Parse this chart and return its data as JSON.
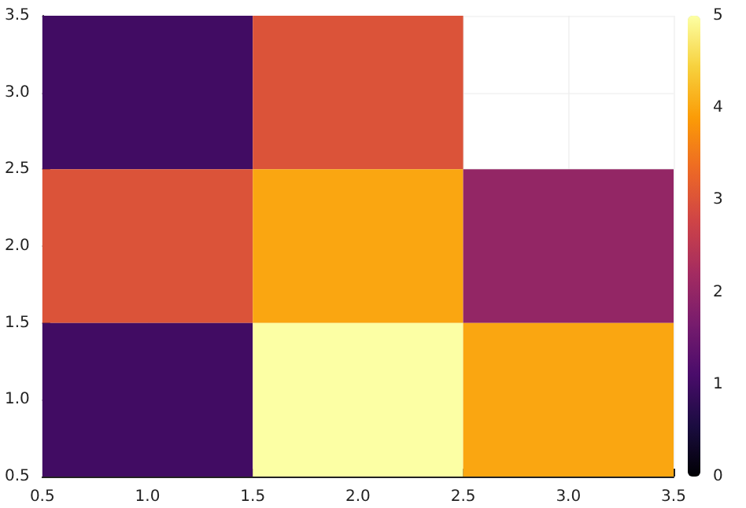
{
  "chart_data": {
    "type": "heatmap",
    "x": [
      1,
      2,
      3
    ],
    "y": [
      3,
      2,
      1
    ],
    "cells": [
      [
        1,
        3,
        null
      ],
      [
        3,
        4,
        2
      ],
      [
        1,
        5,
        4
      ]
    ],
    "xlim": [
      0.5,
      3.5
    ],
    "xticks": [
      {
        "value": 0.5,
        "label": "0.5"
      },
      {
        "value": 1,
        "label": "1.0"
      },
      {
        "value": 1.5,
        "label": "1.5"
      },
      {
        "value": 2,
        "label": "2.0"
      },
      {
        "value": 2.5,
        "label": "2.5"
      },
      {
        "value": 3,
        "label": "3.0"
      },
      {
        "value": 3.5,
        "label": "3.5"
      }
    ],
    "ylim": [
      0.5,
      3.5
    ],
    "yticks": [
      {
        "value": 0.5,
        "label": "0.5"
      },
      {
        "value": 1,
        "label": "1.0"
      },
      {
        "value": 1.5,
        "label": "1.5"
      },
      {
        "value": 2,
        "label": "2.0"
      },
      {
        "value": 2.5,
        "label": "2.5"
      },
      {
        "value": 3,
        "label": "3.0"
      },
      {
        "value": 3.5,
        "label": "3.5"
      }
    ],
    "clim": [
      0,
      5
    ],
    "cticks": [
      0,
      1,
      2,
      3,
      4,
      5
    ],
    "grid": true
  }
}
